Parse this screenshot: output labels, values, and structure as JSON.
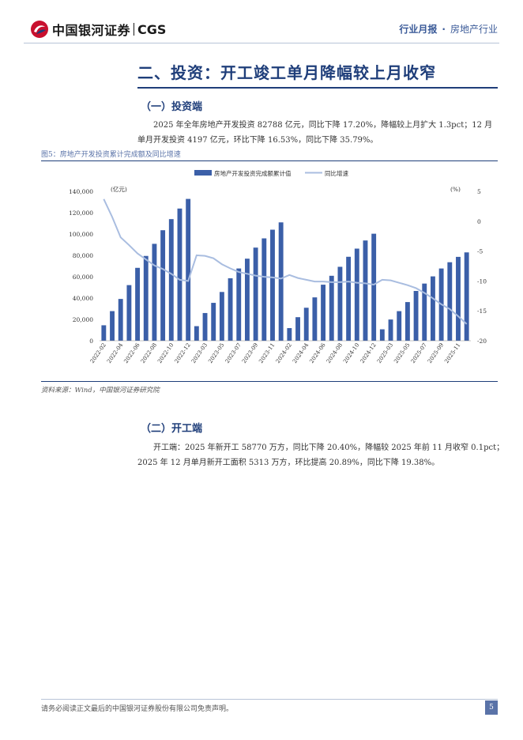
{
  "header": {
    "logo_cn": "中国银河证券",
    "logo_en": "CGS",
    "report_type": "行业月报",
    "separator": "·",
    "industry": "房地产行业"
  },
  "section": {
    "title": "二、投资：开工竣工单月降幅较上月收窄"
  },
  "sub1": {
    "title": "（一）投资端",
    "para_line1": "2025 年全年房地产开发投资 82788 亿元，同比下降 17.20%，降幅较上月扩大 1.3pct；12 月",
    "para_line2": "单月开发投资 4197 亿元，环比下降 16.53%，同比下降 35.79%。"
  },
  "figure": {
    "caption": "图5：房地产开发投资累计完成额及同比增速",
    "source": "资料来源：Wind，中国银河证券研究院"
  },
  "chart_data": {
    "type": "bar",
    "title": "",
    "legend": [
      "房地产开发投资完成额累计值",
      "同比增速"
    ],
    "y_left_label": "(亿元)",
    "y_right_label": "(%)",
    "y_left_ticks": [
      "140,000",
      "120,000",
      "100,000",
      "80,000",
      "60,000",
      "40,000",
      "20,000",
      "0"
    ],
    "y_right_ticks": [
      "5",
      "0",
      "-5",
      "-10",
      "-15",
      "-20"
    ],
    "ylim_left": [
      0,
      140000
    ],
    "ylim_right": [
      -20,
      5
    ],
    "x_tick_labels": [
      "2022-02",
      "2022-04",
      "2022-06",
      "2022-08",
      "2022-10",
      "2022-12",
      "2023-03",
      "2023-05",
      "2023-07",
      "2023-09",
      "2023-11",
      "2024-02",
      "2024-04",
      "2024-06",
      "2024-08",
      "2024-10",
      "2024-12",
      "2025-03",
      "2025-05",
      "2025-07",
      "2025-09",
      "2025-11"
    ],
    "categories": [
      "2022-02",
      "2022-03",
      "2022-04",
      "2022-05",
      "2022-06",
      "2022-07",
      "2022-08",
      "2022-09",
      "2022-10",
      "2022-11",
      "2022-12",
      "2023-02",
      "2023-03",
      "2023-04",
      "2023-05",
      "2023-06",
      "2023-07",
      "2023-08",
      "2023-09",
      "2023-10",
      "2023-11",
      "2023-12",
      "2024-02",
      "2024-03",
      "2024-04",
      "2024-05",
      "2024-06",
      "2024-07",
      "2024-08",
      "2024-09",
      "2024-10",
      "2024-11",
      "2024-12",
      "2025-02",
      "2025-03",
      "2025-04",
      "2025-05",
      "2025-06",
      "2025-07",
      "2025-08",
      "2025-09",
      "2025-10",
      "2025-11",
      "2025-12"
    ],
    "series": [
      {
        "name": "房地产开发投资完成额累计值",
        "kind": "bar",
        "axis": "left",
        "values": [
          14499,
          27765,
          39154,
          52134,
          68314,
          79462,
          90809,
          103559,
          113945,
          123863,
          132895,
          13669,
          25974,
          35514,
          45701,
          58550,
          67717,
          76900,
          87269,
          95922,
          104045,
          110913,
          11842,
          22082,
          30928,
          40632,
          52529,
          60877,
          69284,
          78680,
          86309,
          93948,
          100280,
          10720,
          19904,
          27730,
          36234,
          46658,
          53580,
          60309,
          67706,
          73563,
          78591,
          82788
        ]
      },
      {
        "name": "同比增速",
        "kind": "line",
        "axis": "right",
        "values": [
          3.7,
          0.7,
          -2.7,
          -4.0,
          -5.4,
          -6.4,
          -7.4,
          -8.0,
          -8.8,
          -9.8,
          -10.0,
          -5.7,
          -5.8,
          -6.2,
          -7.2,
          -7.9,
          -8.5,
          -8.8,
          -9.1,
          -9.3,
          -9.4,
          -9.6,
          -9.0,
          -9.5,
          -9.8,
          -10.1,
          -10.1,
          -10.2,
          -10.2,
          -10.1,
          -10.3,
          -10.4,
          -10.6,
          -9.8,
          -9.9,
          -10.3,
          -10.7,
          -11.2,
          -12.0,
          -12.9,
          -13.9,
          -14.7,
          -15.9,
          -17.2
        ]
      }
    ]
  },
  "sub2": {
    "title": "（二）开工端",
    "para_line1": "开工端：2025 年新开工 58770 万方，同比下降 20.40%，降幅较 2025 年前 11 月收窄 0.1pct；",
    "para_line2": "2025 年 12 月单月新开工面积 5313 万方，环比提高 20.89%，同比下降 19.38%。"
  },
  "footer": {
    "disclaimer": "请务必阅读正文最后的中国银河证券股份有限公司免责声明。",
    "page": "5"
  },
  "colors": {
    "primary": "#1f3e7a",
    "bar": "#3b5fa8",
    "line": "#a9bde0",
    "logo_red": "#c8102e"
  }
}
